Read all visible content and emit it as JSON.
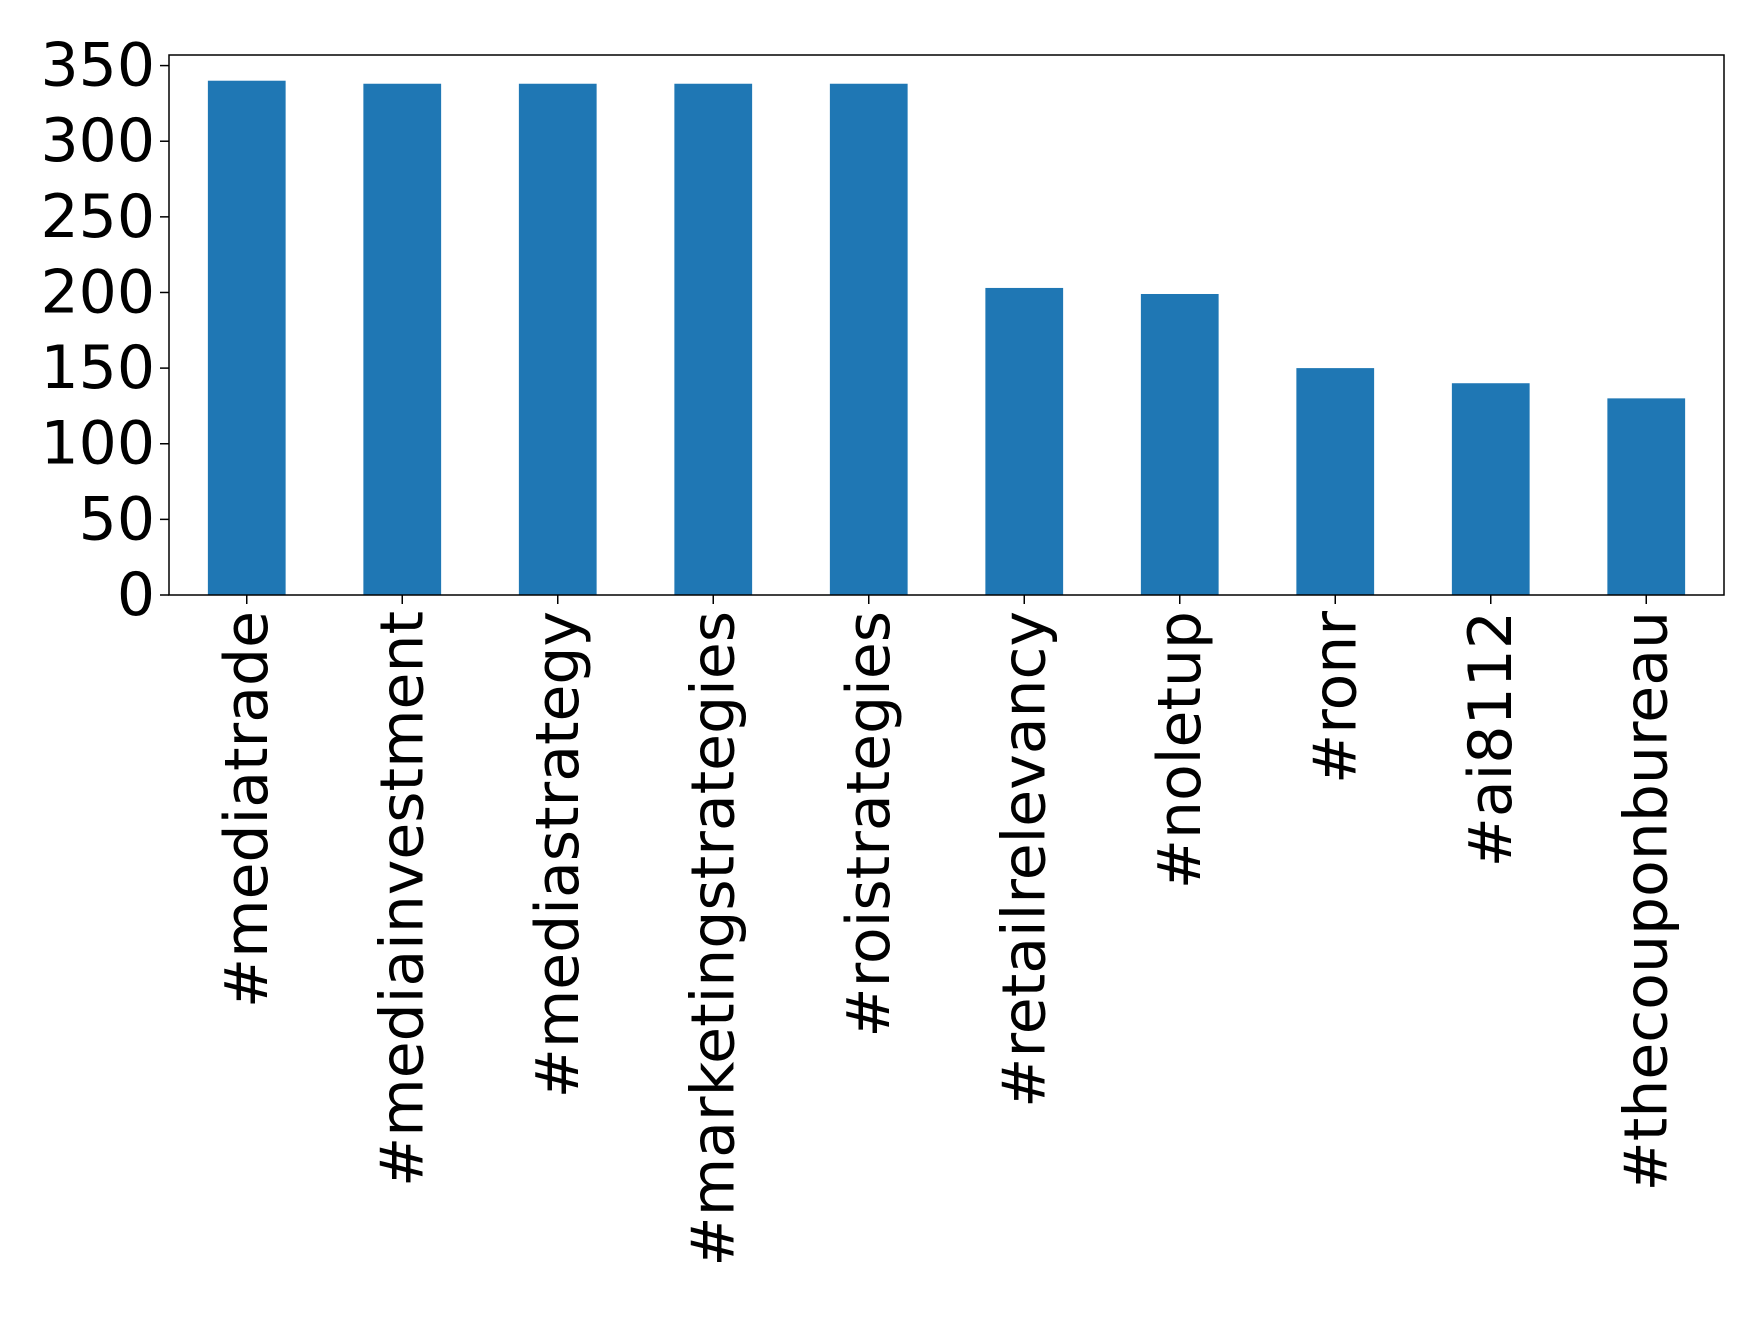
{
  "chart_data": {
    "type": "bar",
    "title": "",
    "xlabel": "",
    "ylabel": "",
    "categories": [
      "#mediatrade",
      "#mediainvestment",
      "#mediastrategy",
      "#marketingstrategies",
      "#roistrategies",
      "#retailrelevancy",
      "#noletup",
      "#ronr",
      "#ai8112",
      "#thecouponbureau"
    ],
    "values": [
      340,
      338,
      338,
      338,
      338,
      203,
      199,
      150,
      140,
      130
    ],
    "ylim": [
      0,
      357
    ],
    "yticks": [
      "0",
      "50",
      "100",
      "150",
      "200",
      "250",
      "300",
      "350"
    ],
    "grid": false,
    "legend": "none",
    "colors": {
      "bar": "#1f77b4",
      "axis": "#000000",
      "background": "#ffffff"
    }
  }
}
